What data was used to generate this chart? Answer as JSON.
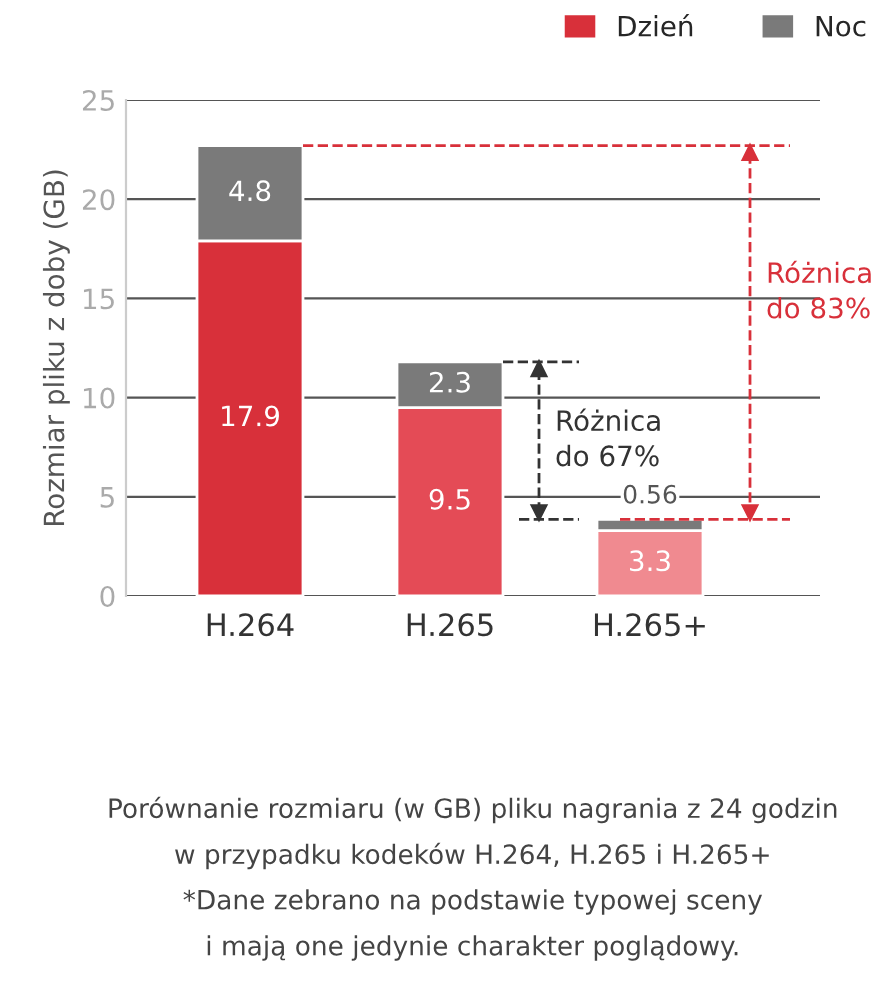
{
  "chart_data": {
    "type": "bar",
    "stacked": true,
    "ylabel": "Rozmiar pliku z doby (GB)",
    "categories": [
      "H.264",
      "H.265",
      "H.265+"
    ],
    "series": [
      {
        "name": "Dzień",
        "colors": [
          "#d8303a",
          "#e44b56",
          "#f08a90"
        ],
        "values": [
          17.9,
          9.5,
          3.3
        ]
      },
      {
        "name": "Noc",
        "color": "#7a7a7a",
        "values": [
          4.8,
          2.3,
          0.56
        ]
      }
    ],
    "ref_lines": [
      {
        "axis": "y",
        "value": 22.7,
        "color": "#d8303a",
        "line_style": "dashed"
      }
    ],
    "ylim": [
      0,
      25
    ],
    "yticks": [
      0,
      5,
      10,
      15,
      20,
      25
    ],
    "grid": "y",
    "legend": "top right",
    "data_labels": true,
    "annotations": [
      "Różnica\ndo 67%",
      "Różnica\ndo 83%",
      "Porównanie rozmiaru (w GB) pliku nagrania z 24 godzin",
      "w przypadku kodeków H.264, H.265 i H.265+",
      "*Dane zebrano na podstawie typowej sceny",
      "i mają one jedynie charakter poglądowy."
    ]
  }
}
